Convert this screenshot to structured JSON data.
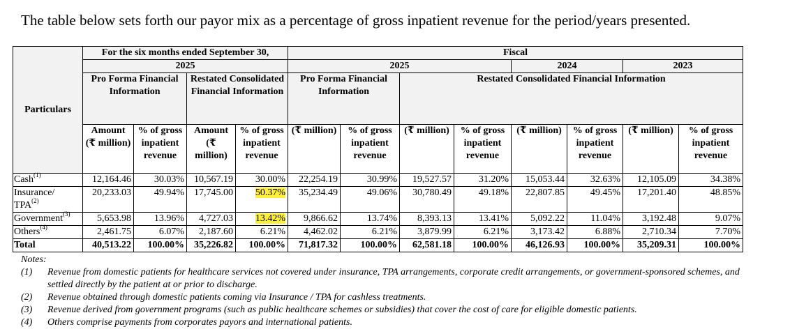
{
  "intro": "The table below sets forth our payor mix as a percentage of gross inpatient revenue for the period/years presented.",
  "headers": {
    "particulars": "Particulars",
    "six_months": "For the six months ended September 30,",
    "fiscal": "Fiscal",
    "y2025a": "2025",
    "y2025b": "2025",
    "y2024": "2024",
    "y2023": "2023",
    "pro_forma_a": "Pro Forma Financial Information",
    "restated_a": "Restated Consolidated Financial Information",
    "pro_forma_b": "Pro Forma Financial Information",
    "restated_b": "Restated Consolidated Financial Information",
    "amount_million": "Amount (₹ million)",
    "pct_gross_a": "% of gross inpatient revenue",
    "pct_gross_b": "% of gross inpatient revenue",
    "million": "(₹ million)"
  },
  "rows": [
    {
      "label": "Cash",
      "note": "(1)",
      "values": [
        "12,164.46",
        "30.03%",
        "10,567.19",
        "30.00%",
        "22,254.19",
        "30.99%",
        "19,527.57",
        "31.20%",
        "15,053.44",
        "32.63%",
        "12,105.09",
        "34.38%"
      ]
    },
    {
      "label": "Insurance/ TPA",
      "note": "(2)",
      "values": [
        "20,233.03",
        "49.94%",
        "17,745.00",
        "50.37%",
        "35,234.49",
        "49.06%",
        "30,780.49",
        "49.18%",
        "22,807.85",
        "49.45%",
        "17,201.40",
        "48.85%"
      ]
    },
    {
      "label": "Government",
      "note": "(3)",
      "values": [
        "5,653.98",
        "13.96%",
        "4,727.03",
        "13.42%",
        "9,866.62",
        "13.74%",
        "8,393.13",
        "13.41%",
        "5,092.22",
        "11.04%",
        "3,192.48",
        "9.07%"
      ]
    },
    {
      "label": "Others",
      "note": "(4)",
      "values": [
        "2,461.75",
        "6.07%",
        "2,187.60",
        "6.21%",
        "4,462.02",
        "6.21%",
        "3,879.99",
        "6.21%",
        "3,173.42",
        "6.88%",
        "2,710.34",
        "7.70%"
      ]
    },
    {
      "label": "Total",
      "note": "",
      "values": [
        "40,513.22",
        "100.00%",
        "35,226.82",
        "100.00%",
        "71,817.32",
        "100.00%",
        "62,581.18",
        "100.00%",
        "46,126.93",
        "100.00%",
        "35,209.31",
        "100.00%"
      ]
    }
  ],
  "notes": {
    "title": "Notes:",
    "items": [
      {
        "num": "(1)",
        "text": "Revenue from domestic patients for healthcare services not covered under insurance, TPA arrangements, corporate credit arrangements, or government-sponsored schemes, and settled directly by the patient at or prior to discharge."
      },
      {
        "num": "(2)",
        "text": "Revenue obtained through domestic patients coming via Insurance / TPA for cashless treatments."
      },
      {
        "num": "(3)",
        "text": "Revenue derived from government programs (such as public healthcare schemes or subsidies) that cover the cost of care for eligible domestic patients."
      },
      {
        "num": "(4)",
        "text": "Others comprise payments from corporates payors and international patients."
      }
    ]
  },
  "highlight_color": "#ffef3a"
}
